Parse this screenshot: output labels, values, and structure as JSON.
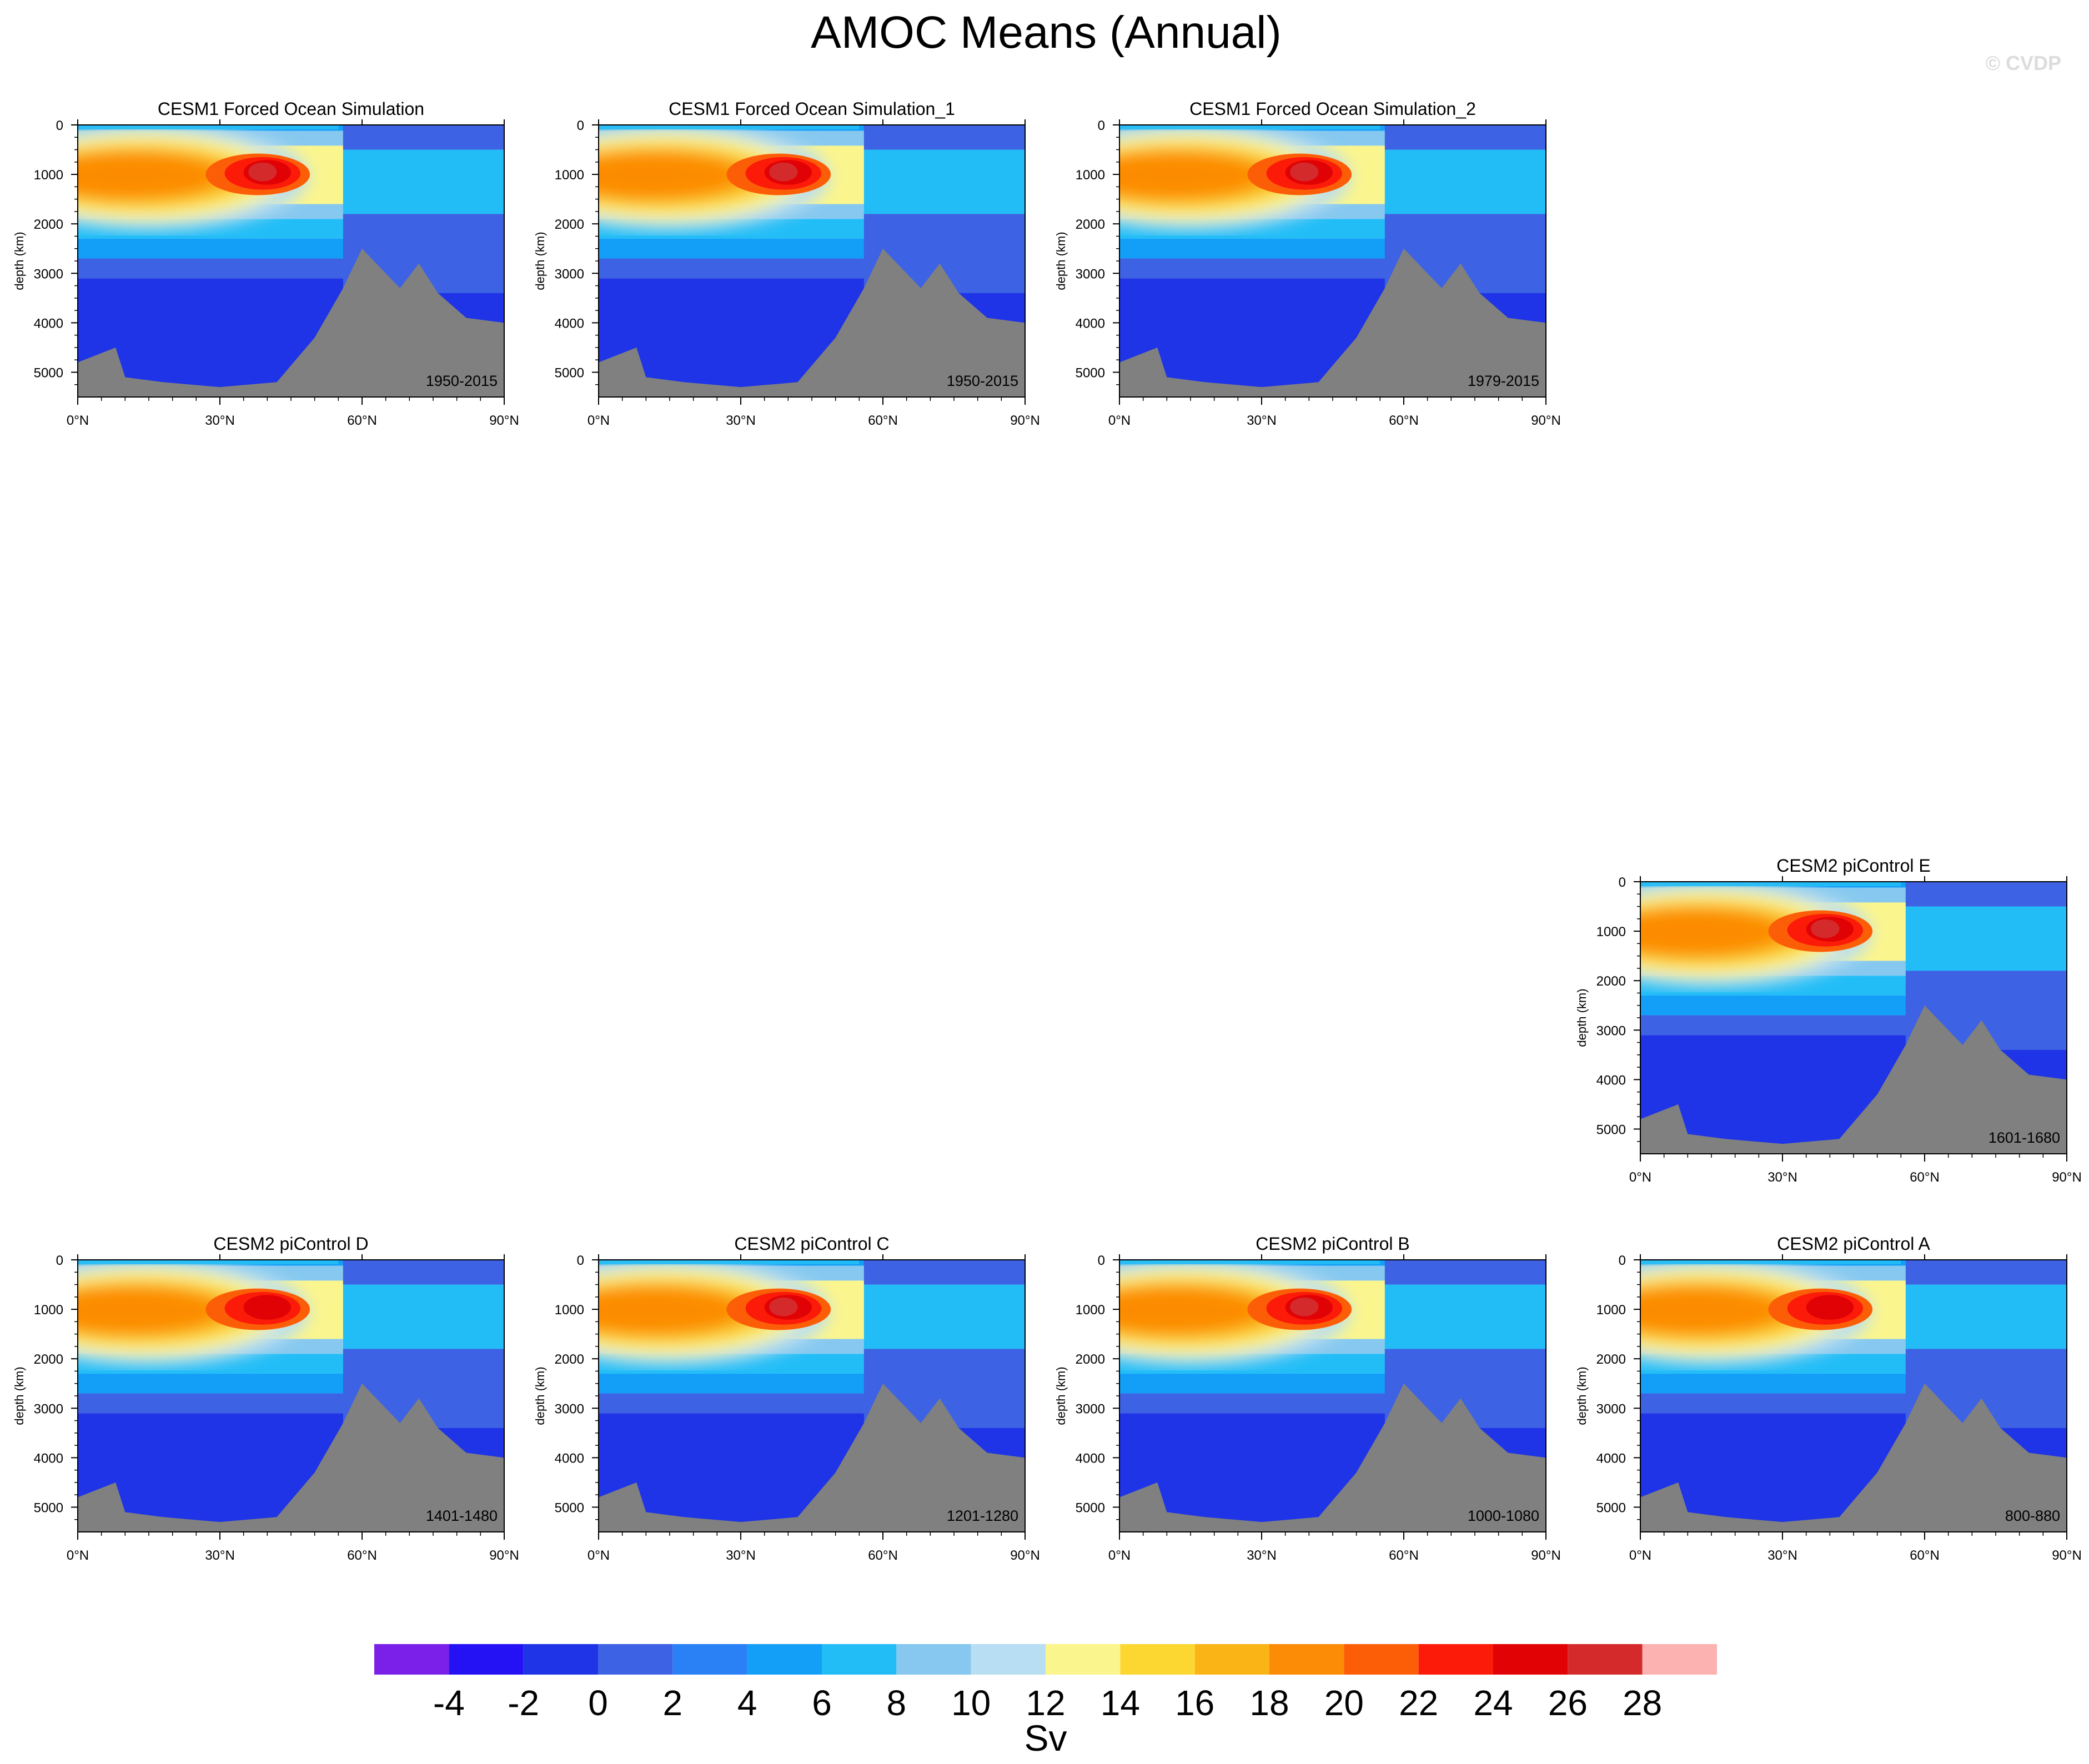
{
  "figure": {
    "title": "AMOC Means (Annual)",
    "watermark": "© CVDP"
  },
  "axes": {
    "ylabel": "depth (km)",
    "yticks": [
      "0",
      "1000",
      "2000",
      "3000",
      "4000",
      "5000"
    ],
    "ytick_values": [
      0,
      1000,
      2000,
      3000,
      4000,
      5000
    ],
    "ylim": [
      0,
      5500
    ],
    "xticks": [
      "0°N",
      "30°N",
      "60°N",
      "90°N"
    ],
    "xtick_values": [
      0,
      30,
      60,
      90
    ],
    "xlim": [
      0,
      90
    ]
  },
  "colorbar": {
    "label": "Sv",
    "colors": [
      "#7b20e8",
      "#2412f5",
      "#1e34e6",
      "#3d62e3",
      "#2a80f5",
      "#139ef7",
      "#22bdf7",
      "#86c8ef",
      "#b7def2",
      "#fbf58e",
      "#fcd732",
      "#fbb416",
      "#fc8b06",
      "#fc5e08",
      "#fc1a08",
      "#e10206",
      "#d42a2c",
      "#fdb2b2"
    ],
    "tick_labels": [
      "-4",
      "-2",
      "0",
      "2",
      "4",
      "6",
      "8",
      "10",
      "12",
      "14",
      "16",
      "18",
      "20",
      "22",
      "24",
      "26",
      "28"
    ]
  },
  "chart_data": [
    {
      "type": "heatmap",
      "title": "CESM1 Forced Ocean Simulation",
      "period": "1950-2015",
      "max_sv": 25
    },
    {
      "type": "heatmap",
      "title": "CESM1 Forced Ocean Simulation_1",
      "period": "1950-2015",
      "max_sv": 25
    },
    {
      "type": "heatmap",
      "title": "CESM1 Forced Ocean Simulation_2",
      "period": "1979-2015",
      "max_sv": 25
    },
    {
      "type": "heatmap",
      "title": "CESM2 piControl E",
      "period": "1601-1680",
      "max_sv": 24
    },
    {
      "type": "heatmap",
      "title": "CESM2 piControl D",
      "period": "1401-1480",
      "max_sv": 22
    },
    {
      "type": "heatmap",
      "title": "CESM2 piControl C",
      "period": "1201-1280",
      "max_sv": 23
    },
    {
      "type": "heatmap",
      "title": "CESM2 piControl B",
      "period": "1000-1080",
      "max_sv": 24
    },
    {
      "type": "heatmap",
      "title": "CESM2 piControl A",
      "period": "800-880",
      "max_sv": 22
    }
  ]
}
